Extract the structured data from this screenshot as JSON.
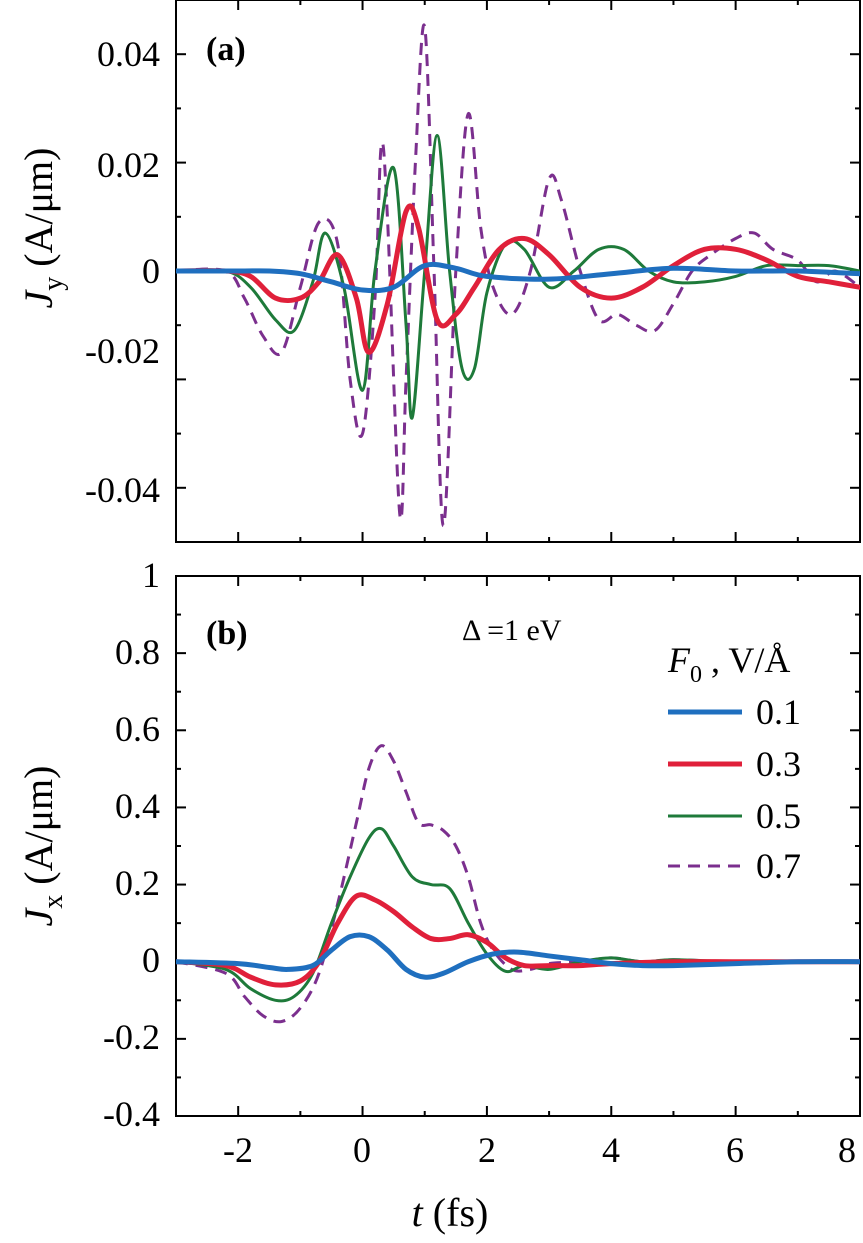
{
  "chart_data": [
    {
      "type": "line",
      "panel": "(a)",
      "ylabel_main": "J",
      "ylabel_sub": "y",
      "ylabel_unit": " (A/μm)",
      "xlim": [
        -3,
        8
      ],
      "ylim": [
        -0.05,
        0.05
      ],
      "xticks": [
        -2,
        0,
        2,
        4,
        6,
        8
      ],
      "yticks": [
        -0.04,
        -0.02,
        0,
        0.02,
        0.04
      ],
      "ytick_labels": [
        "-0.04",
        "-0.02",
        "0",
        "0.02",
        "0.04"
      ],
      "series": [
        {
          "name": "0.1",
          "color": "#1f6fbf",
          "dash": "",
          "width": 5,
          "x": [
            -3,
            -2,
            -1.5,
            -1,
            -0.5,
            0,
            0.5,
            1,
            1.5,
            2,
            3,
            4,
            5,
            6,
            7,
            8
          ],
          "y": [
            0,
            0,
            0,
            -0.0005,
            -0.002,
            -0.0035,
            -0.003,
            0.001,
            0.0005,
            -0.001,
            -0.0015,
            -0.0005,
            0.0005,
            0,
            0,
            -0.0005
          ]
        },
        {
          "name": "0.3",
          "color": "#e0203a",
          "dash": "",
          "width": 5,
          "x": [
            -3,
            -2.2,
            -1.8,
            -1.4,
            -1.0,
            -0.7,
            -0.4,
            -0.1,
            0.1,
            0.4,
            0.7,
            0.9,
            1.2,
            1.5,
            1.8,
            2.2,
            2.6,
            3.0,
            3.5,
            4.0,
            4.5,
            5.0,
            5.5,
            6.0,
            6.5,
            7.0,
            7.5,
            8.0
          ],
          "y": [
            0,
            0,
            -0.001,
            -0.005,
            -0.005,
            -0.002,
            0.003,
            -0.005,
            -0.015,
            -0.006,
            0.011,
            0.008,
            -0.009,
            -0.008,
            -0.003,
            0.004,
            0.006,
            0.003,
            -0.003,
            -0.005,
            -0.003,
            0.001,
            0.004,
            0.004,
            0.002,
            -0.001,
            -0.002,
            -0.003
          ]
        },
        {
          "name": "0.5",
          "color": "#1e7a3a",
          "dash": "",
          "width": 3,
          "x": [
            -3,
            -2.2,
            -1.8,
            -1.4,
            -1.1,
            -0.8,
            -0.6,
            -0.3,
            0,
            0.2,
            0.5,
            0.7,
            0.8,
            1.0,
            1.2,
            1.4,
            1.6,
            1.8,
            2.0,
            2.3,
            2.6,
            3.0,
            3.4,
            3.8,
            4.2,
            4.6,
            5.0,
            5.5,
            6.0,
            6.5,
            7.0,
            7.5,
            8.0
          ],
          "y": [
            0,
            0,
            -0.003,
            -0.009,
            -0.011,
            -0.002,
            0.007,
            -0.003,
            -0.022,
            0.0,
            0.019,
            -0.01,
            -0.027,
            0.0,
            0.025,
            0.0,
            -0.018,
            -0.018,
            -0.004,
            0.005,
            0.004,
            -0.003,
            0.0,
            0.004,
            0.004,
            0.0,
            -0.002,
            -0.002,
            -0.001,
            0.001,
            0.001,
            0.001,
            0.0
          ]
        },
        {
          "name": "0.7",
          "color": "#7b2f8e",
          "dash": "12,8",
          "width": 3,
          "x": [
            -3,
            -2.2,
            -1.9,
            -1.6,
            -1.3,
            -1.0,
            -0.7,
            -0.4,
            -0.2,
            0.0,
            0.2,
            0.3,
            0.4,
            0.6,
            0.7,
            0.85,
            1.0,
            1.15,
            1.3,
            1.5,
            1.7,
            1.9,
            2.1,
            2.4,
            2.7,
            3.0,
            3.2,
            3.5,
            3.8,
            4.1,
            4.4,
            4.7,
            5.0,
            5.3,
            5.6,
            6.0,
            6.3,
            6.6,
            7.0,
            7.3,
            7.6,
            8.0
          ],
          "y": [
            0,
            0,
            -0.005,
            -0.012,
            -0.015,
            -0.003,
            0.009,
            0.005,
            -0.02,
            -0.03,
            -0.005,
            0.023,
            0.01,
            -0.045,
            -0.02,
            0.02,
            0.045,
            0.0,
            -0.047,
            0.0,
            0.029,
            0.008,
            -0.003,
            -0.008,
            0.0,
            0.017,
            0.013,
            0.0,
            -0.009,
            -0.008,
            -0.01,
            -0.011,
            -0.006,
            0.0,
            0.003,
            0.006,
            0.007,
            0.004,
            0.002,
            -0.002,
            0.0,
            -0.003
          ]
        }
      ]
    },
    {
      "type": "line",
      "panel": "(b)",
      "ylabel_main": "J",
      "ylabel_sub": "x",
      "ylabel_unit": " (A/μm)",
      "xlabel_main": "t",
      "xlabel_unit": " (fs)",
      "annotation": "Δ =1 eV",
      "legend_title_main": "F",
      "legend_title_sub": "0",
      "legend_title_unit": " , V/Å",
      "xlim": [
        -3,
        8
      ],
      "ylim": [
        -0.4,
        1
      ],
      "xticks": [
        -2,
        0,
        2,
        4,
        6,
        8
      ],
      "xtick_labels": [
        "-2",
        "0",
        "2",
        "4",
        "6",
        "8"
      ],
      "yticks": [
        -0.4,
        -0.2,
        0,
        0.2,
        0.4,
        0.6,
        0.8,
        1
      ],
      "ytick_labels": [
        "-0.4",
        "-0.2",
        "0",
        "0.2",
        "0.4",
        "0.6",
        "0.8",
        "1"
      ],
      "series": [
        {
          "name": "0.1",
          "color": "#1f6fbf",
          "dash": "",
          "width": 5,
          "x": [
            -3,
            -2,
            -1.5,
            -1.2,
            -0.8,
            -0.5,
            -0.2,
            0.1,
            0.4,
            0.7,
            1.0,
            1.3,
            1.7,
            2.1,
            2.5,
            3.0,
            3.5,
            4.0,
            4.5,
            5.0,
            6.0,
            7.0,
            8.0
          ],
          "y": [
            0,
            -0.005,
            -0.015,
            -0.02,
            -0.01,
            0.03,
            0.065,
            0.065,
            0.03,
            -0.02,
            -0.04,
            -0.03,
            0.0,
            0.02,
            0.025,
            0.015,
            0.005,
            -0.005,
            -0.01,
            -0.01,
            -0.005,
            0.0,
            0.0
          ]
        },
        {
          "name": "0.3",
          "color": "#e0203a",
          "dash": "",
          "width": 5,
          "x": [
            -3,
            -2.2,
            -1.8,
            -1.4,
            -1.0,
            -0.7,
            -0.4,
            -0.1,
            0.2,
            0.5,
            0.8,
            1.1,
            1.4,
            1.7,
            2.0,
            2.3,
            2.6,
            3.0,
            3.5,
            4.0,
            5.0,
            6.0,
            7.0,
            8.0
          ],
          "y": [
            0,
            -0.01,
            -0.04,
            -0.06,
            -0.05,
            0.0,
            0.1,
            0.17,
            0.16,
            0.13,
            0.09,
            0.06,
            0.06,
            0.07,
            0.05,
            0.01,
            -0.01,
            -0.01,
            -0.01,
            -0.005,
            0.0,
            0.0,
            0.0,
            0.0
          ]
        },
        {
          "name": "0.5",
          "color": "#1e7a3a",
          "dash": "",
          "width": 3,
          "x": [
            -3,
            -2.2,
            -1.8,
            -1.4,
            -1.1,
            -0.8,
            -0.5,
            -0.2,
            0.1,
            0.3,
            0.5,
            0.8,
            1.1,
            1.4,
            1.7,
            2.0,
            2.3,
            2.6,
            3.0,
            3.5,
            4.0,
            4.5,
            5.0,
            6.0,
            7.0,
            8.0
          ],
          "y": [
            0,
            -0.02,
            -0.07,
            -0.1,
            -0.09,
            -0.03,
            0.1,
            0.22,
            0.32,
            0.345,
            0.3,
            0.22,
            0.2,
            0.19,
            0.1,
            0.02,
            -0.025,
            -0.01,
            -0.02,
            0.0,
            0.01,
            0.0,
            0.005,
            0.0,
            0.0,
            0.0
          ]
        },
        {
          "name": "0.7",
          "color": "#7b2f8e",
          "dash": "12,8",
          "width": 3,
          "x": [
            -3,
            -2.2,
            -1.9,
            -1.6,
            -1.3,
            -1.0,
            -0.7,
            -0.4,
            -0.1,
            0.1,
            0.3,
            0.5,
            0.7,
            0.9,
            1.1,
            1.3,
            1.5,
            1.7,
            1.9,
            2.1,
            2.4,
            2.7,
            3.0,
            3.5,
            4.0,
            4.5,
            5.0,
            6.0,
            7.0,
            8.0
          ],
          "y": [
            0,
            -0.03,
            -0.09,
            -0.14,
            -0.155,
            -0.12,
            -0.03,
            0.15,
            0.36,
            0.5,
            0.56,
            0.52,
            0.44,
            0.36,
            0.355,
            0.34,
            0.3,
            0.22,
            0.1,
            0.03,
            -0.02,
            -0.02,
            -0.005,
            0.0,
            0.01,
            0.0,
            0.005,
            0.0,
            0.0,
            0.0
          ]
        }
      ]
    }
  ]
}
